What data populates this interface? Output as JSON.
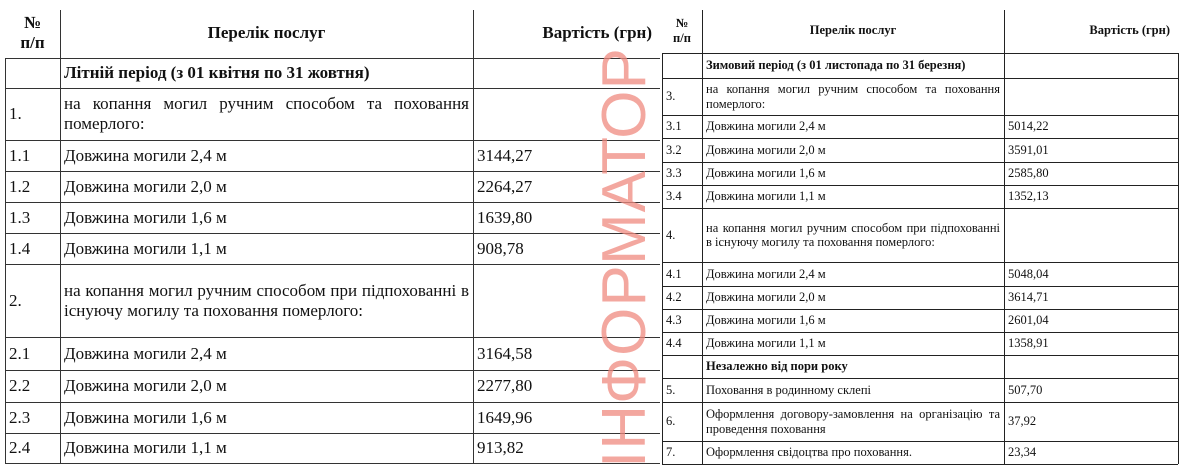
{
  "left_table": {
    "headers": {
      "num": "№\nп/п",
      "service": "Перелік послуг",
      "price": "Вартість (грн)"
    },
    "rows": [
      {
        "num": "",
        "service": "Літній період (з 01 квітня по 31 жовтня)",
        "price": "",
        "bold": true
      },
      {
        "num": "1.",
        "service": "на копання могил ручним способом та поховання померлого:",
        "price": ""
      },
      {
        "num": "1.1",
        "service": "Довжина могили 2,4 м",
        "price": "3144,27"
      },
      {
        "num": "1.2",
        "service": "Довжина могили 2,0 м",
        "price": "2264,27"
      },
      {
        "num": "1.3",
        "service": "Довжина могили 1,6 м",
        "price": "1639,80"
      },
      {
        "num": "1.4",
        "service": "Довжина могили 1,1 м",
        "price": "908,78"
      },
      {
        "num": "2.",
        "service": "на копання могил ручним способом при підпохованні в існуючу могилу та поховання померлого:",
        "price": ""
      },
      {
        "num": "2.1",
        "service": "Довжина могили 2,4 м",
        "price": "3164,58"
      },
      {
        "num": "2.2",
        "service": "Довжина могили 2,0 м",
        "price": "2277,80"
      },
      {
        "num": "2.3",
        "service": "Довжина могили 1,6 м",
        "price": "1649,96"
      },
      {
        "num": "2.4",
        "service": "Довжина могили 1,1 м",
        "price": "913,82"
      }
    ]
  },
  "right_table": {
    "headers": {
      "num": "№\nп/п",
      "service": "Перелік послуг",
      "price": "Вартість (грн)"
    },
    "rows": [
      {
        "num": "",
        "service": "Зимовий період (з 01 листопада по 31 березня)",
        "price": "",
        "bold": true
      },
      {
        "num": "3.",
        "service": "на копання могил ручним способом та поховання померлого:",
        "price": ""
      },
      {
        "num": "3.1",
        "service": "Довжина могили 2,4 м",
        "price": "5014,22"
      },
      {
        "num": "3.2",
        "service": "Довжина могили 2,0 м",
        "price": "3591,01"
      },
      {
        "num": "3.3",
        "service": "Довжина могили 1,6 м",
        "price": "2585,80"
      },
      {
        "num": "3.4",
        "service": "Довжина могили 1,1 м",
        "price": "1352,13"
      },
      {
        "num": "4.",
        "service": "на копання могил ручним способом при підпохованні в існуючу могилу та поховання померлого:",
        "price": ""
      },
      {
        "num": "4.1",
        "service": "Довжина могили 2,4 м",
        "price": "5048,04"
      },
      {
        "num": "4.2",
        "service": "Довжина могили 2,0 м",
        "price": "3614,71"
      },
      {
        "num": "4.3",
        "service": "Довжина могили 1,6 м",
        "price": "2601,04"
      },
      {
        "num": "4.4",
        "service": "Довжина могили 1,1 м",
        "price": "1358,91"
      },
      {
        "num": "",
        "service": "Незалежно від пори року",
        "price": "",
        "bold": true
      },
      {
        "num": "5.",
        "service": "Поховання в родинному склепі",
        "price": "507,70"
      },
      {
        "num": "6.",
        "service": "Оформлення договору-замовлення на організацію та проведення поховання",
        "price": "37,92"
      },
      {
        "num": "7.",
        "service": "Оформлення свідоцтва про поховання.",
        "price": "23,34"
      }
    ]
  },
  "watermark": {
    "text": "ІНФОРМАТОР",
    "color": "#f08a80"
  }
}
